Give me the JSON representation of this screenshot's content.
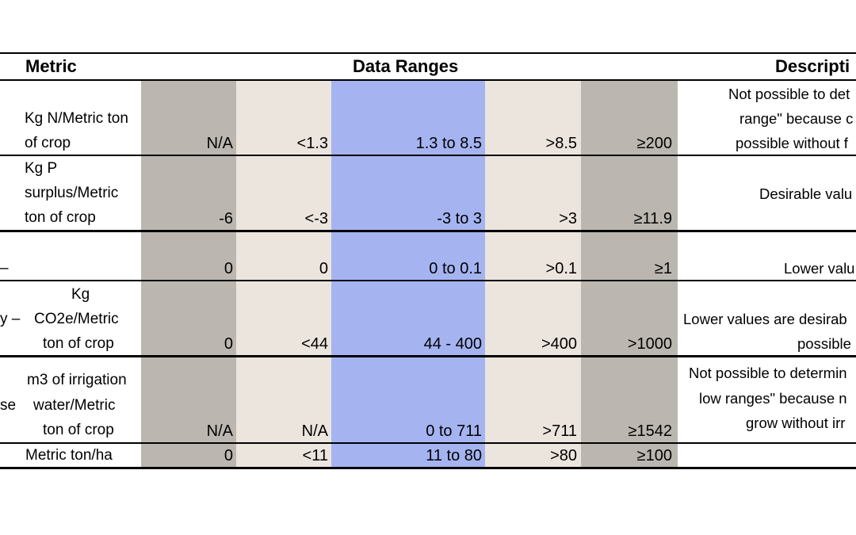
{
  "header": {
    "metric": "Metric",
    "data_ranges": "Data Ranges",
    "description": "Descripti"
  },
  "rows": [
    {
      "left_fragment": "",
      "unit_lines": [
        "",
        "Kg N/Metric ton",
        "of crop"
      ],
      "values": [
        "N/A",
        "<1.3",
        "1.3 to 8.5",
        ">8.5",
        "≥200"
      ],
      "desc_lines": [
        "Not possible to det",
        "range\" because c",
        "possible without f"
      ]
    },
    {
      "left_fragment": "",
      "unit_lines": [
        "Kg P",
        "surplus/Metric",
        "ton of crop"
      ],
      "values": [
        "-6",
        "<-3",
        "-3 to 3",
        ">3",
        "≥11.9"
      ],
      "desc_lines": [
        "Desirable valu"
      ]
    },
    {
      "left_fragment": "–",
      "unit_lines": [],
      "values": [
        "0",
        "0",
        "0 to 0.1",
        ">0.1",
        "≥1"
      ],
      "desc_lines": [
        "Lower valu"
      ]
    },
    {
      "left_fragment": "y –",
      "unit_lines": [
        "Kg",
        "CO2e/Metric",
        "ton of crop"
      ],
      "values": [
        "0",
        "<44",
        "44 - 400",
        ">400",
        ">1000"
      ],
      "desc_lines": [
        "Lower values are desirab",
        "possible"
      ]
    },
    {
      "left_fragment": "se",
      "unit_lines": [
        "m3 of irrigation",
        "water/Metric",
        "ton of crop"
      ],
      "values": [
        "N/A",
        "N/A",
        "0 to 711",
        ">711",
        "≥1542"
      ],
      "desc_lines": [
        "Not possible to determin",
        "low ranges\" because n",
        "grow without irr"
      ]
    },
    {
      "left_fragment": "",
      "unit_lines": [
        "Metric ton/ha"
      ],
      "values": [
        "0",
        "<11",
        "11  to 80",
        ">80",
        "≥100"
      ],
      "desc_lines": []
    }
  ],
  "colors": {
    "gray_band": "#bbb7b0",
    "beige_band": "#ece5de",
    "blue_band": "#a5b4f1"
  }
}
